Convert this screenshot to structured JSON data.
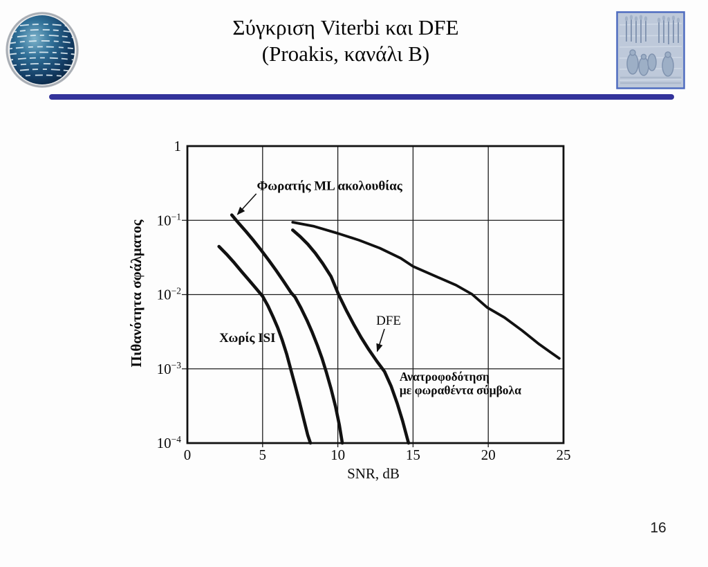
{
  "slide": {
    "title_line1": "Σύγκριση Viterbi και DFE",
    "title_line2": "(Proakis, κανάλι B)",
    "page_number": "16",
    "accent_color": "#33339B"
  },
  "chart_data": {
    "type": "line",
    "title": "",
    "xlabel": "SNR, dB",
    "ylabel": "Πιθανότητα σφάλματος",
    "xlim": [
      0,
      25
    ],
    "ylim": [
      0.0001,
      1
    ],
    "y_scale": "log",
    "grid": true,
    "legend_position": "none",
    "line_color": "#111111",
    "xticks": [
      0,
      5,
      10,
      15,
      20,
      25
    ],
    "ytick_labels": [
      "1",
      "10^-1",
      "10^-2",
      "10^-3",
      "10^-4"
    ],
    "series": [
      {
        "name": "Χωρίς ISI",
        "points": [
          [
            2.1,
            0.0445
          ],
          [
            2.6,
            0.035
          ],
          [
            3.1,
            0.027
          ],
          [
            3.6,
            0.0205
          ],
          [
            4.1,
            0.0156
          ],
          [
            4.55,
            0.0122
          ],
          [
            5.0,
            0.0095
          ],
          [
            5.35,
            0.0071
          ],
          [
            5.7,
            0.005
          ],
          [
            6.0,
            0.0036
          ],
          [
            6.3,
            0.00245
          ],
          [
            6.6,
            0.00158
          ],
          [
            6.85,
            0.00102
          ],
          [
            7.15,
            0.00061
          ],
          [
            7.45,
            0.00036
          ],
          [
            7.75,
            0.000205
          ],
          [
            8.0,
            0.000128
          ],
          [
            8.18,
            0.0001
          ]
        ]
      },
      {
        "name": "Φωρατής ML ακολουθίας",
        "points": [
          [
            2.95,
            0.118
          ],
          [
            3.4,
            0.092
          ],
          [
            3.9,
            0.0705
          ],
          [
            4.4,
            0.0535
          ],
          [
            4.9,
            0.0398
          ],
          [
            5.4,
            0.0292
          ],
          [
            5.9,
            0.0211
          ],
          [
            6.4,
            0.015
          ],
          [
            6.9,
            0.0106
          ],
          [
            7.15,
            0.0093
          ],
          [
            7.55,
            0.0066
          ],
          [
            7.95,
            0.0045
          ],
          [
            8.3,
            0.0031
          ],
          [
            8.65,
            0.00205
          ],
          [
            8.95,
            0.00138
          ],
          [
            9.25,
            0.00088
          ],
          [
            9.55,
            0.00054
          ],
          [
            9.85,
            0.00031
          ],
          [
            10.1,
            0.000175
          ],
          [
            10.3,
            0.0001
          ]
        ]
      },
      {
        "name": "DFE",
        "points": [
          [
            7.0,
            0.074
          ],
          [
            7.5,
            0.0605
          ],
          [
            8.0,
            0.0478
          ],
          [
            8.5,
            0.0362
          ],
          [
            9.0,
            0.0262
          ],
          [
            9.55,
            0.0175
          ],
          [
            10.05,
            0.01
          ],
          [
            10.55,
            0.0062
          ],
          [
            11.05,
            0.004
          ],
          [
            11.55,
            0.00265
          ],
          [
            12.05,
            0.00183
          ],
          [
            12.6,
            0.00126
          ],
          [
            13.1,
            0.00092
          ],
          [
            13.55,
            0.00058
          ],
          [
            13.95,
            0.00034
          ],
          [
            14.3,
            0.0002
          ],
          [
            14.55,
            0.00013
          ],
          [
            14.7,
            0.0001
          ]
        ]
      },
      {
        "name": "Ανατροφοδότηση με φωραθέντα σύμβολα",
        "points": [
          [
            7.0,
            0.0943
          ],
          [
            8.42,
            0.0831
          ],
          [
            9.99,
            0.0669
          ],
          [
            11.42,
            0.054
          ],
          [
            12.8,
            0.0421
          ],
          [
            14.18,
            0.0309
          ],
          [
            15.01,
            0.0239
          ],
          [
            16.48,
            0.0177
          ],
          [
            17.86,
            0.0134
          ],
          [
            18.92,
            0.0101
          ],
          [
            19.93,
            0.0067
          ],
          [
            21.08,
            0.0049
          ],
          [
            22.23,
            0.0033
          ],
          [
            23.38,
            0.00215
          ],
          [
            24.07,
            0.00171
          ],
          [
            24.72,
            0.00138
          ]
        ]
      }
    ],
    "annotations": [
      {
        "text": "Φωρατής ML ακολουθίας",
        "x": 4.62,
        "y": 0.295,
        "anchor": "start",
        "bold": true,
        "size": 19,
        "arrow": [
          4.58,
          0.228,
          3.33,
          0.12
        ]
      },
      {
        "text": "Χωρίς ISI",
        "x": 2.12,
        "y": 0.00265,
        "anchor": "start",
        "bold": true,
        "size": 19
      },
      {
        "text": "DFE",
        "x": 12.55,
        "y": 0.00455,
        "anchor": "start",
        "bold": false,
        "size": 19,
        "arrow": [
          13.1,
          0.00345,
          12.62,
          0.00172
        ]
      },
      {
        "text": "Ανατροφοδότηση",
        "x": 14.1,
        "y": 0.00079,
        "anchor": "start",
        "bold": true,
        "size": 17.5
      },
      {
        "text": "με φωραθέντα σύμβολα",
        "x": 14.1,
        "y": 0.00052,
        "anchor": "start",
        "bold": true,
        "size": 17.5
      }
    ]
  }
}
